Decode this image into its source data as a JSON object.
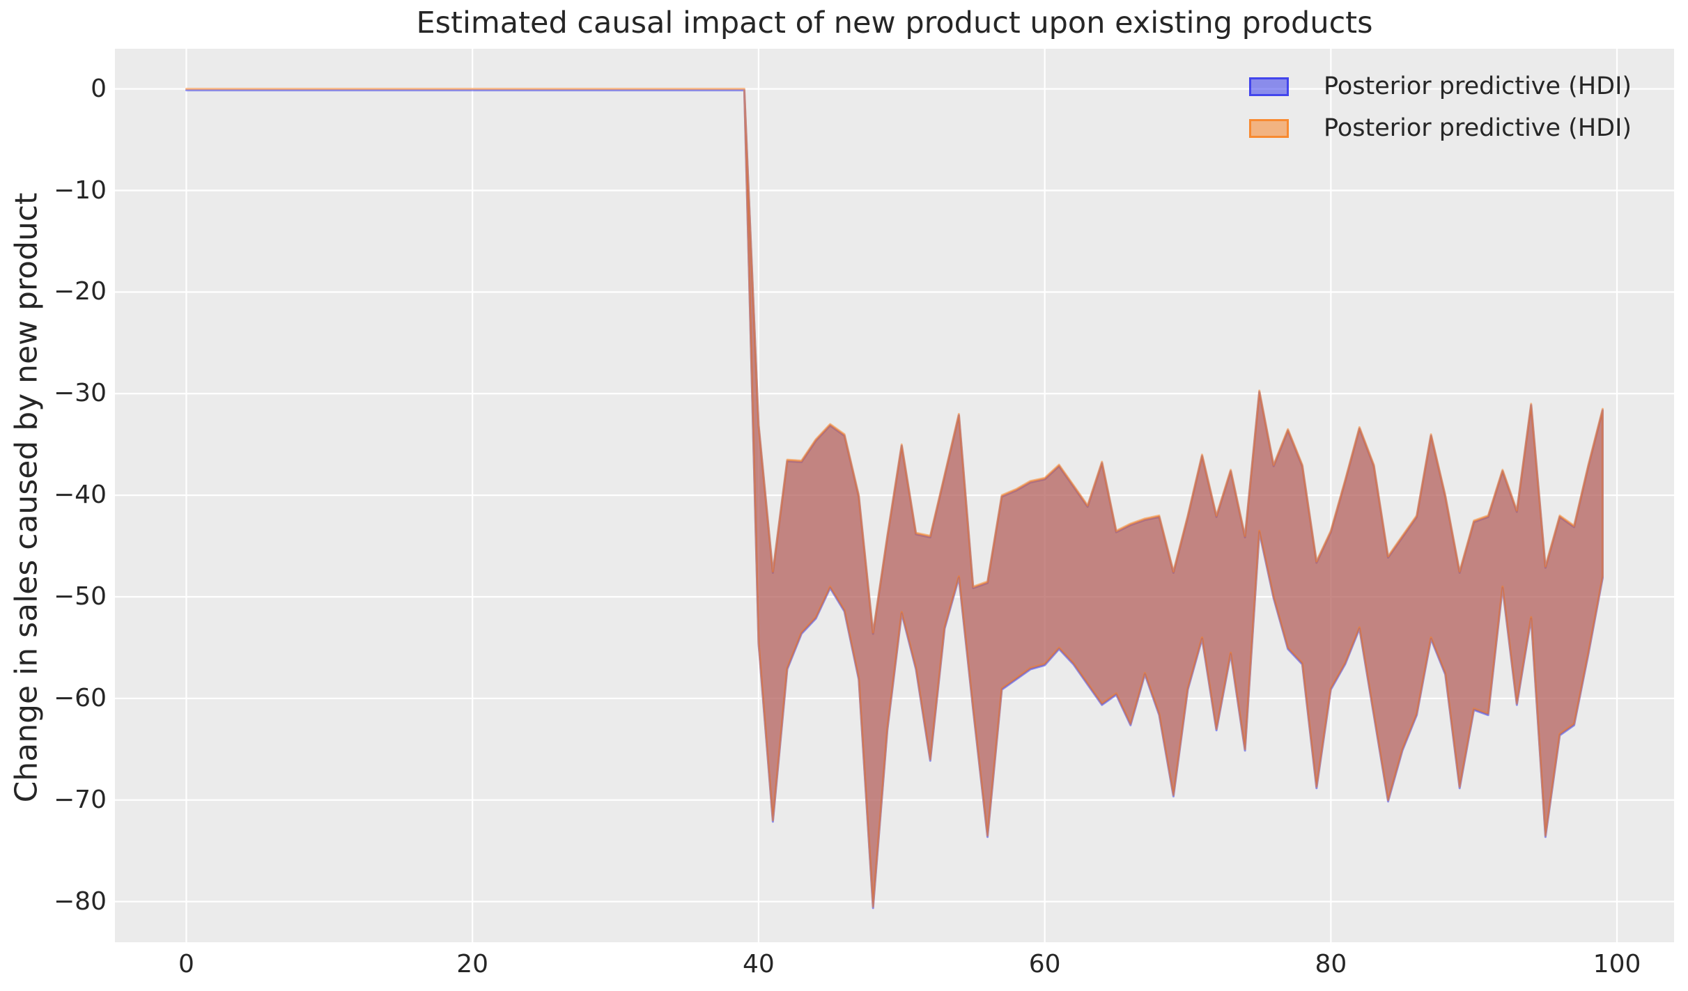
{
  "chart_data": {
    "type": "area",
    "title": "Estimated causal impact of new product upon existing products",
    "xlabel": "",
    "ylabel": "Change in sales caused by new product",
    "xlim": [
      -4.99,
      103.99
    ],
    "ylim_top": 3.95,
    "ylim_bottom": -84.0,
    "grid": true,
    "legend_position": "upper right",
    "xticks": [
      0,
      20,
      40,
      60,
      80,
      100
    ],
    "xtick_labels": [
      "0",
      "20",
      "40",
      "60",
      "80",
      "100"
    ],
    "yticks": [
      0,
      -10,
      -20,
      -30,
      -40,
      -50,
      -60,
      -70,
      -80
    ],
    "ytick_labels": [
      "0",
      "−10",
      "−20",
      "−30",
      "−40",
      "−50",
      "−60",
      "−70",
      "−80"
    ],
    "series": [
      {
        "name": "Posterior predictive (HDI)",
        "type": "hdi-band",
        "color": "#2a2eec",
        "fill_alpha": 0.5
      },
      {
        "name": "Posterior predictive (HDI)",
        "type": "hdi-band",
        "color": "#fa7c17",
        "fill_alpha": 0.5
      }
    ],
    "intervention_note": "band is zero-width (flat line at 0) for x=0..39, wide HDI band for x=40..99",
    "x": [
      0,
      1,
      2,
      3,
      4,
      5,
      6,
      7,
      8,
      9,
      10,
      11,
      12,
      13,
      14,
      15,
      16,
      17,
      18,
      19,
      20,
      21,
      22,
      23,
      24,
      25,
      26,
      27,
      28,
      29,
      30,
      31,
      32,
      33,
      34,
      35,
      36,
      37,
      38,
      39,
      40,
      41,
      42,
      43,
      44,
      45,
      46,
      47,
      48,
      49,
      50,
      51,
      52,
      53,
      54,
      55,
      56,
      57,
      58,
      59,
      60,
      61,
      62,
      63,
      64,
      65,
      66,
      67,
      68,
      69,
      70,
      71,
      72,
      73,
      74,
      75,
      76,
      77,
      78,
      79,
      80,
      81,
      82,
      83,
      84,
      85,
      86,
      87,
      88,
      89,
      90,
      91,
      92,
      93,
      94,
      95,
      96,
      97,
      98,
      99
    ],
    "band_upper": [
      0,
      0,
      0,
      0,
      0,
      0,
      0,
      0,
      0,
      0,
      0,
      0,
      0,
      0,
      0,
      0,
      0,
      0,
      0,
      0,
      0,
      0,
      0,
      0,
      0,
      0,
      0,
      0,
      0,
      0,
      0,
      0,
      0,
      0,
      0,
      0,
      0,
      0,
      0,
      0,
      -33,
      -47.5,
      -36.5,
      -36.6,
      -34.5,
      -33,
      -34,
      -40,
      -53.5,
      -44,
      -35,
      -43.7,
      -44,
      -38,
      -32,
      -49,
      -48.5,
      -40,
      -39.4,
      -38.6,
      -38.3,
      -37,
      -39,
      -41,
      -36.7,
      -43.5,
      -42.8,
      -42.3,
      -42,
      -47.5,
      -42,
      -36,
      -42,
      -37.5,
      -44,
      -29.7,
      -37,
      -33.5,
      -37,
      -46.5,
      -43.5,
      -38.5,
      -33.3,
      -37,
      -46,
      -44,
      -42,
      -34,
      -40,
      -47.5,
      -42.5,
      -42,
      -37.5,
      -41.5,
      -31,
      -47,
      -42,
      -43,
      -37,
      -31.5
    ],
    "band_lower": [
      0,
      0,
      0,
      0,
      0,
      0,
      0,
      0,
      0,
      0,
      0,
      0,
      0,
      0,
      0,
      0,
      0,
      0,
      0,
      0,
      0,
      0,
      0,
      0,
      0,
      0,
      0,
      0,
      0,
      0,
      0,
      0,
      0,
      0,
      0,
      0,
      0,
      0,
      0,
      0,
      -54.5,
      -72,
      -57,
      -53.5,
      -52,
      -49,
      -51.3,
      -58,
      -80.5,
      -63,
      -51.5,
      -57,
      -66,
      -53,
      -48,
      -61,
      -73.5,
      -59,
      -58,
      -57,
      -56.6,
      -55,
      -56.5,
      -58.5,
      -60.5,
      -59.5,
      -62.5,
      -57.5,
      -61.5,
      -69.5,
      -59,
      -54,
      -63,
      -55.5,
      -65,
      -43.5,
      -50,
      -55,
      -56.5,
      -68.7,
      -59,
      -56.5,
      -53,
      -61.5,
      -70,
      -65,
      -61.5,
      -54,
      -57.5,
      -68.7,
      -61,
      -61.5,
      -49,
      -60.5,
      -52,
      -73.5,
      -63.5,
      -62.5,
      -55.5,
      -48
    ]
  },
  "colors": {
    "figure_background": "#ffffff",
    "axes_background": "#ebebeb",
    "grid": "#ffffff",
    "text": "#262626",
    "hdi_blue": "#2a2eec",
    "hdi_orange": "#fa7c17",
    "band_overlap_fill": "#c28481"
  }
}
